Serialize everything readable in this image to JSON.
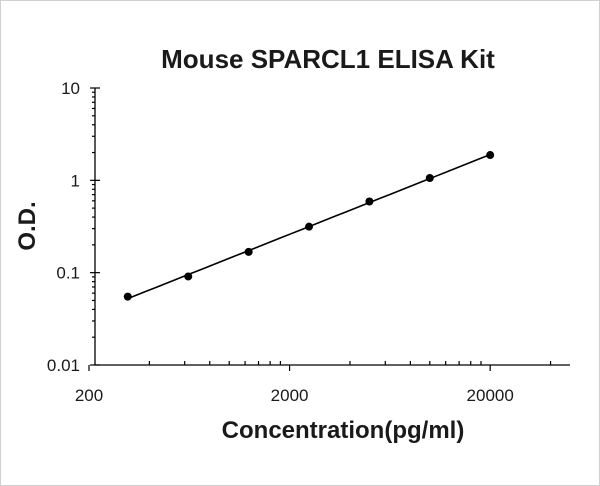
{
  "chart_data": {
    "type": "scatter",
    "title": "Mouse SPARCL1 ELISA Kit",
    "xlabel": "Concentration(pg/ml)",
    "ylabel": "O.D.",
    "x_scale": "log",
    "y_scale": "log",
    "xlim": [
      200,
      50000
    ],
    "ylim": [
      0.01,
      10
    ],
    "x_ticks": [
      "200",
      "2000",
      "20000"
    ],
    "y_ticks": [
      "0.01",
      "0.1",
      "1",
      "10"
    ],
    "grid": false,
    "legend": "none",
    "series": [
      {
        "x": [
          312,
          625,
          1250,
          2500,
          5000,
          10000,
          20000
        ],
        "y": [
          0.055,
          0.091,
          0.168,
          0.315,
          0.59,
          1.06,
          1.88
        ]
      }
    ]
  }
}
